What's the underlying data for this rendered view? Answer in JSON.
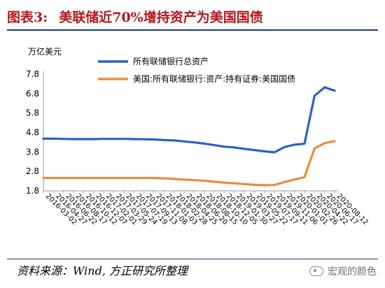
{
  "figure": {
    "number": "图表3:",
    "title": "美联储近70%增持资产为美国国债",
    "source": "资料来源：Wind, 方正研究所整理",
    "watermark": "宏观的颜色"
  },
  "chart_data": {
    "type": "line",
    "ylabel": "万亿美元",
    "ylim": [
      1.8,
      7.8
    ],
    "yticks": [
      1.8,
      2.8,
      3.8,
      4.8,
      5.8,
      6.8,
      7.8
    ],
    "x": [
      "2016-03-02",
      "2016-04-27",
      "2016-06-22",
      "2016-08-17",
      "2016-10-12",
      "2016-12-07",
      "2017-02-01",
      "2017-03-29",
      "2017-05-24",
      "2017-07-19",
      "2017-09-13",
      "2017-11-08",
      "2018-01-03",
      "2018-02-28",
      "2018-04-25",
      "2018-06-20",
      "2018-08-15",
      "2018-10-10",
      "2018-12-05",
      "2019-01-30",
      "2019-03-27",
      "2019-05-22",
      "2019-07-17",
      "2019-09-11",
      "2019-11-06",
      "2020-01-01",
      "2020-02-26",
      "2020-04-22",
      "2020-06-17",
      "2020-08-12"
    ],
    "grid": false,
    "legend": "top",
    "series": [
      {
        "name": "所有联储银行总资产",
        "color": "#2f5fc7",
        "values": [
          4.48,
          4.48,
          4.47,
          4.46,
          4.46,
          4.46,
          4.47,
          4.47,
          4.47,
          4.46,
          4.45,
          4.44,
          4.41,
          4.39,
          4.34,
          4.29,
          4.23,
          4.15,
          4.07,
          4.03,
          3.96,
          3.9,
          3.83,
          3.78,
          4.05,
          4.17,
          4.22,
          6.68,
          7.12,
          6.95
        ]
      },
      {
        "name": "美国:所有联储银行:资产:持有证券:美国国债",
        "color": "#ed8b3a",
        "values": [
          2.46,
          2.46,
          2.46,
          2.46,
          2.46,
          2.46,
          2.46,
          2.46,
          2.46,
          2.46,
          2.46,
          2.46,
          2.44,
          2.41,
          2.38,
          2.35,
          2.32,
          2.27,
          2.22,
          2.19,
          2.15,
          2.11,
          2.09,
          2.1,
          2.25,
          2.38,
          2.5,
          3.98,
          4.25,
          4.35
        ]
      }
    ]
  }
}
